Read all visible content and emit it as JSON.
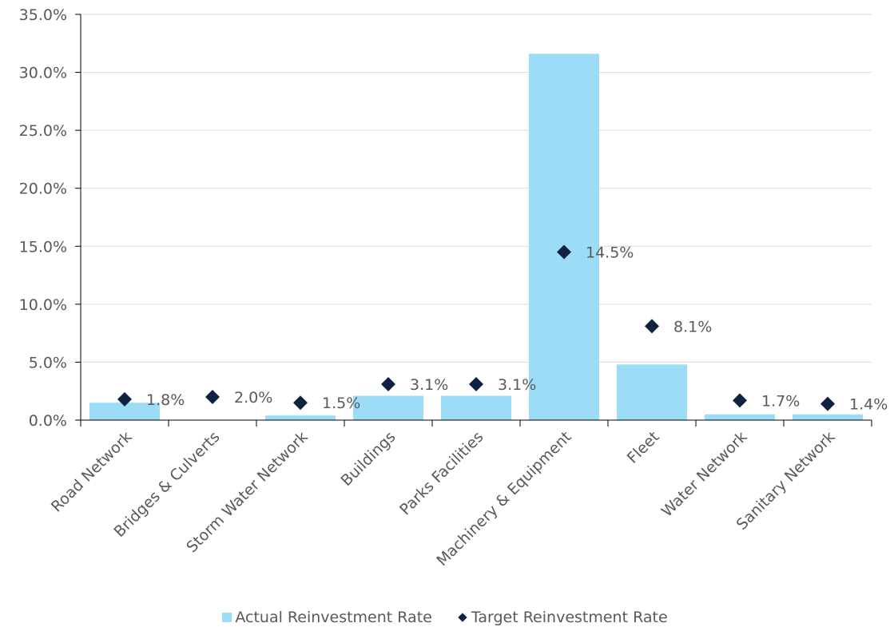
{
  "chart_data": {
    "type": "bar",
    "categories": [
      "Road Network",
      "Bridges & Culverts",
      "Storm Water Network",
      "Buildings",
      "Parks Facilities",
      "Machinery & Equipment",
      "Fleet",
      "Water Network",
      "Sanitary Network"
    ],
    "series": [
      {
        "name": "Actual Reinvestment Rate",
        "type": "bar",
        "values": [
          1.5,
          0.0,
          0.4,
          2.1,
          2.1,
          31.6,
          4.8,
          0.5,
          0.5
        ]
      },
      {
        "name": "Target Reinvestment Rate",
        "type": "scatter",
        "values": [
          1.8,
          2.0,
          1.5,
          3.1,
          3.1,
          14.5,
          8.1,
          1.7,
          1.4
        ],
        "labels": [
          "1.8%",
          "2.0%",
          "1.5%",
          "3.1%",
          "3.1%",
          "14.5%",
          "8.1%",
          "1.7%",
          "1.4%"
        ]
      }
    ],
    "yticks": [
      "0.0%",
      "5.0%",
      "10.0%",
      "15.0%",
      "20.0%",
      "25.0%",
      "30.0%",
      "35.0%"
    ],
    "ylim": [
      0,
      35
    ],
    "grid": true,
    "legend_position": "bottom",
    "colors": {
      "bar": "#9ddcf6",
      "marker": "#0f2240",
      "grid": "#d9d9d9",
      "axis": "#000000",
      "text": "#595959"
    }
  }
}
